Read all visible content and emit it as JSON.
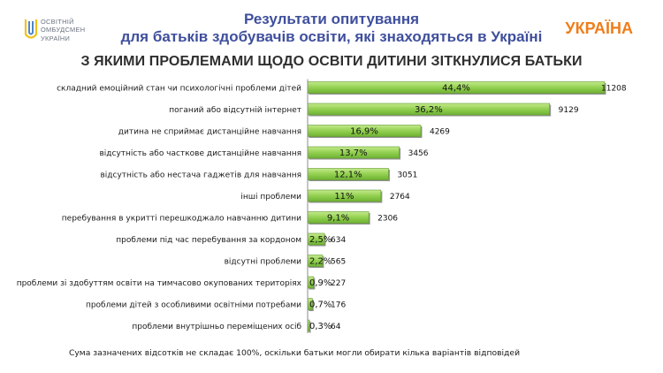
{
  "header": {
    "logo_lines": [
      "ОСВІТНІЙ",
      "ОМБУДСМЕН",
      "УКРАЇНИ"
    ],
    "title_line1": "Результати опитування",
    "title_line2": "для батьків здобувачів освіти, які знаходяться в Україні",
    "country": "УКРАЇНА"
  },
  "colors": {
    "bar": "#92d050",
    "title": "#3f4f9d",
    "country": "#ef7d1a"
  },
  "chart_data": {
    "type": "bar",
    "orientation": "horizontal",
    "title": "З ЯКИМИ ПРОБЛЕМАМИ ЩОДО ОСВІТИ ДИТИНИ ЗІТКНУЛИСЯ БАТЬКИ",
    "categories": [
      "складний емоційний стан чи психологічні проблеми дітей",
      "поганий або відсутній інтернет",
      "дитина не сприймає дистанційне навчання",
      "відсутність або часткове дистанційне навчання",
      "відсутність або нестача гаджетів для навчання",
      "інші проблеми",
      "перебування в укритті перешкоджало навчанню дитини",
      "проблеми під час перебування за кордоном",
      "відсутні проблеми",
      "проблеми зі здобуттям освіти на тимчасово окупованих територіях",
      "проблеми дітей з особливими освітніми потребами",
      "проблеми внутрішньо переміщених осіб"
    ],
    "values": [
      11208,
      9129,
      4269,
      3456,
      3051,
      2764,
      2306,
      634,
      565,
      227,
      176,
      64
    ],
    "percent_labels": [
      "44,4%",
      "36,2%",
      "16,9%",
      "13,7%",
      "12,1%",
      "11%",
      "9,1%",
      "2,5%",
      "2,2%",
      "0,9%",
      "0,7%",
      "0,3%"
    ],
    "value_labels": [
      "11208",
      "9129",
      "4269",
      "3456",
      "3051",
      "2764",
      "2306",
      "634",
      "565",
      "227",
      "176",
      "64"
    ],
    "xlim": [
      0,
      11208
    ],
    "grid": false,
    "legend": "none"
  },
  "footnote": "Сума зазначених відсотків не складає 100%, оскільки батьки могли обирати кілька варіантів відповідей"
}
